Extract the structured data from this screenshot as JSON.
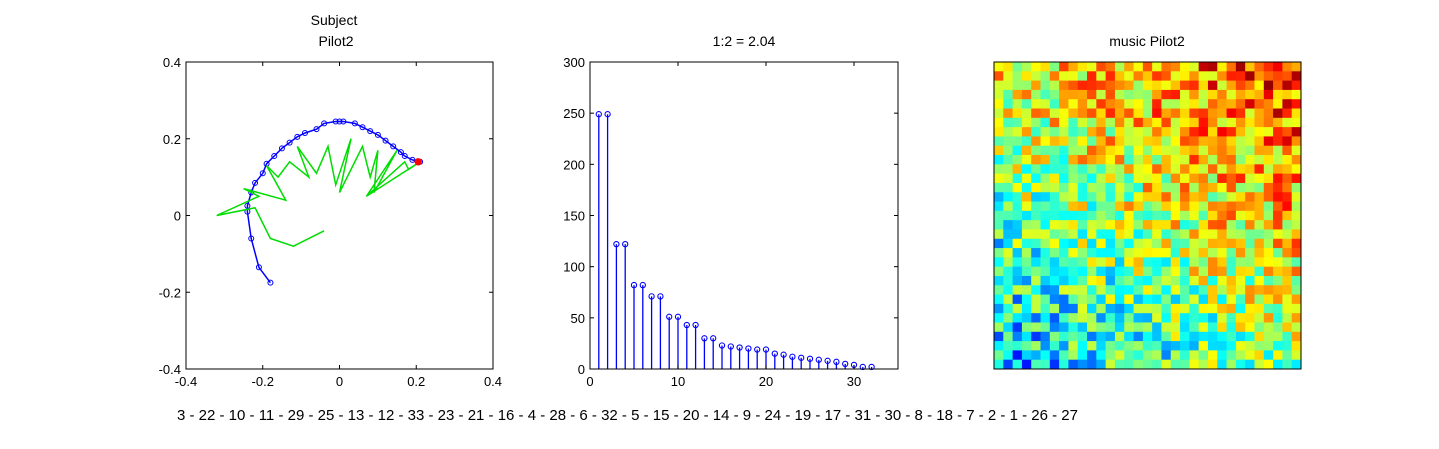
{
  "footer_sequence": "3 - 22 - 10 - 11 - 29 - 25 - 13 - 12 - 33 - 23 - 21 - 16 - 4 - 28 - 6 - 32 - 5 - 15 - 20 - 14 - 9 - 24 - 19 - 17 - 31 - 30 - 8 - 18 - 7 - 2 - 1 - 26 - 27",
  "chart_data": [
    {
      "type": "line",
      "title_lines": [
        "Subject",
        "Pilot2"
      ],
      "xlim": [
        -0.4,
        0.4
      ],
      "ylim": [
        -0.4,
        0.4
      ],
      "xticks": [
        -0.4,
        -0.2,
        0,
        0.2,
        0.4
      ],
      "yticks": [
        -0.4,
        -0.2,
        0,
        0.2,
        0.4
      ],
      "xtick_labels": [
        "-0.4",
        "-0.2",
        "0",
        "0.2",
        "0.4"
      ],
      "ytick_labels": [
        "-0.4",
        "-0.2",
        "0",
        "0.2",
        "0.4"
      ],
      "series": [
        {
          "color": "#0000ff",
          "marker": "circle",
          "x": [
            -0.18,
            -0.21,
            -0.23,
            -0.24,
            -0.24,
            -0.23,
            -0.22,
            -0.2,
            -0.19,
            -0.17,
            -0.15,
            -0.13,
            -0.11,
            -0.09,
            -0.06,
            -0.04,
            -0.01,
            0.0,
            0.01,
            0.04,
            0.06,
            0.08,
            0.1,
            0.12,
            0.14,
            0.16,
            0.17,
            0.19,
            0.21
          ],
          "y": [
            -0.175,
            -0.135,
            -0.06,
            0.01,
            0.025,
            0.06,
            0.085,
            0.11,
            0.135,
            0.155,
            0.175,
            0.19,
            0.205,
            0.215,
            0.225,
            0.24,
            0.245,
            0.245,
            0.245,
            0.24,
            0.23,
            0.22,
            0.21,
            0.195,
            0.18,
            0.165,
            0.155,
            0.145,
            0.14
          ]
        },
        {
          "color": "#00dd00",
          "marker": "none",
          "x": [
            -0.04,
            -0.12,
            -0.18,
            -0.22,
            -0.32,
            -0.21,
            -0.25,
            -0.14,
            -0.19,
            -0.16,
            -0.13,
            -0.08,
            -0.11,
            -0.06,
            -0.03,
            -0.01,
            0.03,
            0.0,
            0.06,
            0.08,
            0.1,
            0.09,
            0.15,
            0.07,
            0.17,
            0.18,
            0.21,
            0.07
          ],
          "y": [
            -0.04,
            -0.08,
            -0.06,
            0.02,
            0.0,
            0.05,
            0.07,
            0.04,
            0.13,
            0.1,
            0.14,
            0.1,
            0.18,
            0.11,
            0.18,
            0.08,
            0.2,
            0.06,
            0.18,
            0.1,
            0.17,
            0.06,
            0.17,
            0.05,
            0.14,
            0.12,
            0.14,
            0.05
          ]
        }
      ],
      "highlight_point": {
        "x": 0.205,
        "y": 0.14,
        "color": "#ff0000"
      }
    },
    {
      "type": "bar",
      "style": "stem",
      "title": "1:2 = 2.04",
      "xlim": [
        0,
        35
      ],
      "ylim": [
        0,
        300
      ],
      "xticks": [
        0,
        10,
        20,
        30
      ],
      "yticks": [
        0,
        50,
        100,
        150,
        200,
        250,
        300
      ],
      "xtick_labels": [
        "0",
        "10",
        "20",
        "30"
      ],
      "ytick_labels": [
        "0",
        "50",
        "100",
        "150",
        "200",
        "250",
        "300"
      ],
      "x": [
        1,
        2,
        3,
        4,
        5,
        6,
        7,
        8,
        9,
        10,
        11,
        12,
        13,
        14,
        15,
        16,
        17,
        18,
        19,
        20,
        21,
        22,
        23,
        24,
        25,
        26,
        27,
        28,
        29,
        30,
        31,
        32
      ],
      "values": [
        249,
        249,
        122,
        122,
        82,
        82,
        71,
        71,
        51,
        51,
        43,
        43,
        30,
        30,
        23,
        22,
        21,
        20,
        19,
        19,
        15,
        14,
        12,
        11,
        10,
        9,
        8,
        7,
        5,
        4,
        2,
        2
      ],
      "color": "#0000ff"
    },
    {
      "type": "heatmap",
      "title": "music Pilot2",
      "colormap": "jet",
      "rows": 33,
      "cols": 33,
      "value_range": [
        0,
        1
      ]
    }
  ]
}
